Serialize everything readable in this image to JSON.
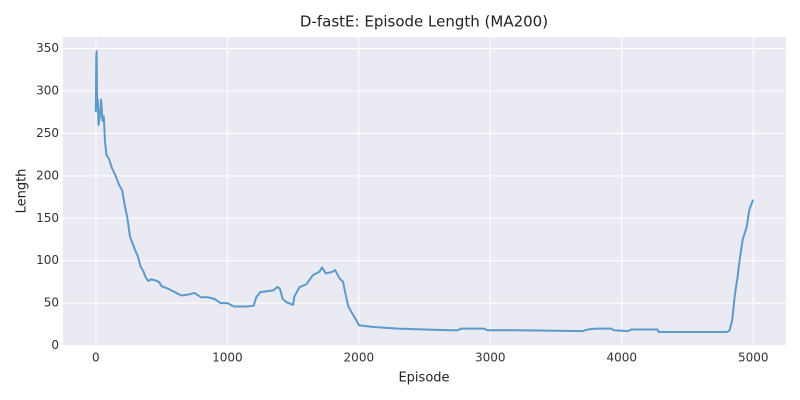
{
  "chart_data": {
    "type": "line",
    "title": "D-fastE: Episode Length (MA200)",
    "xlabel": "Episode",
    "ylabel": "Length",
    "x": [
      0,
      3,
      6,
      10,
      15,
      20,
      30,
      40,
      50,
      60,
      70,
      80,
      100,
      120,
      150,
      180,
      200,
      220,
      240,
      260,
      280,
      300,
      320,
      340,
      360,
      380,
      400,
      420,
      450,
      480,
      500,
      550,
      600,
      650,
      700,
      750,
      800,
      850,
      900,
      950,
      1000,
      1050,
      1100,
      1150,
      1200,
      1220,
      1250,
      1300,
      1350,
      1380,
      1400,
      1420,
      1450,
      1500,
      1510,
      1550,
      1600,
      1650,
      1700,
      1720,
      1750,
      1800,
      1820,
      1850,
      1880,
      1900,
      1920,
      1950,
      1980,
      2000,
      2100,
      2300,
      2500,
      2700,
      2750,
      2780,
      2950,
      2980,
      3200,
      3500,
      3700,
      3740,
      3800,
      3920,
      3940,
      4050,
      4070,
      4270,
      4280,
      4500,
      4800,
      4820,
      4840,
      4860,
      4880,
      4900,
      4920,
      4950,
      4970,
      4999
    ],
    "series": [
      {
        "name": "MA200",
        "color": "#5b9bcb",
        "values": [
          275,
          340,
          347,
          280,
          290,
          260,
          270,
          290,
          265,
          270,
          240,
          225,
          220,
          210,
          200,
          188,
          183,
          165,
          150,
          128,
          120,
          112,
          105,
          93,
          88,
          80,
          76,
          78,
          77,
          75,
          70,
          67,
          63,
          59,
          60,
          62,
          57,
          57,
          55,
          50,
          50,
          46,
          46,
          46,
          47,
          57,
          63,
          64,
          65,
          69,
          67,
          55,
          51,
          48,
          58,
          69,
          72,
          83,
          87,
          92,
          85,
          87,
          89,
          80,
          75,
          60,
          46,
          38,
          30,
          24,
          22,
          20,
          19,
          18,
          18,
          20,
          20,
          18,
          18,
          17.5,
          17,
          19,
          20,
          20,
          18,
          17,
          19,
          19,
          16,
          16,
          16,
          18,
          30,
          60,
          80,
          105,
          125,
          140,
          160,
          172
        ]
      }
    ],
    "xlim": [
      -250,
      5249
    ],
    "ylim": [
      -0.5,
      363.6
    ],
    "xticks": [
      0,
      1000,
      2000,
      3000,
      4000,
      5000
    ],
    "yticks": [
      0,
      50,
      100,
      150,
      200,
      250,
      300,
      350
    ],
    "grid": true
  }
}
